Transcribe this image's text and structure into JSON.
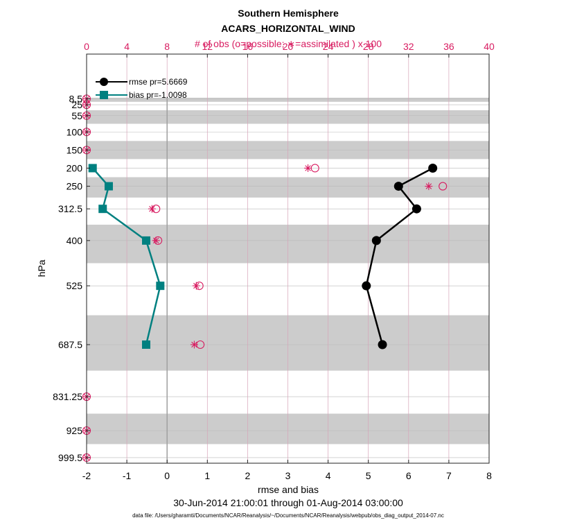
{
  "chart_data": {
    "type": "line",
    "title": "Southern Hemisphere",
    "subtitle": "ACARS_HORIZONTAL_WIND",
    "top_xlabel": "# of obs (o=possible; ∗=assimilated ) x 100",
    "xlabel": "rmse and bias",
    "ylabel": "hPa",
    "date_range": "30-Jun-2014 21:00:01 through 01-Aug-2014 03:00:00",
    "footnote": "data file: /Users/gharamti/Documents/NCAR/Reanalysis/~/Documents/NCAR/Reanalysis/webpub/obs_diag_output_2014-07.nc",
    "xlim": [
      -2,
      8
    ],
    "xticks": [
      "-2",
      "-1",
      "0",
      "1",
      "2",
      "3",
      "4",
      "5",
      "6",
      "7",
      "8"
    ],
    "top_xlim": [
      0,
      40
    ],
    "top_xticks": [
      "0",
      "4",
      "8",
      "12",
      "16",
      "20",
      "24",
      "28",
      "32",
      "36",
      "40"
    ],
    "levels": [
      8.5,
      25,
      55,
      100,
      150,
      200,
      250,
      312.5,
      400,
      525,
      687.5,
      831.25,
      925,
      999.5
    ],
    "level_labels": [
      "8.5",
      "25",
      "55",
      "100",
      "150",
      "200",
      "250",
      "312.5",
      "400",
      "525",
      "687.5",
      "831.25",
      "925",
      "999.5"
    ],
    "series": [
      {
        "name": "rmse pr=5.6669",
        "color": "#000000",
        "levels": [
          200,
          250,
          312.5,
          400,
          525,
          687.5
        ],
        "values": [
          6.6,
          5.75,
          6.2,
          5.2,
          4.95,
          5.35
        ]
      },
      {
        "name": "bias pr=-1.0098",
        "color": "#008080",
        "levels": [
          200,
          250,
          312.5,
          400,
          525,
          687.5
        ],
        "values": [
          -1.85,
          -1.45,
          -1.6,
          -0.52,
          -0.17,
          -0.52
        ]
      }
    ],
    "obs_counts": {
      "levels": [
        8.5,
        25,
        55,
        100,
        150,
        200,
        250,
        312.5,
        400,
        525,
        687.5,
        831.25,
        925,
        999.5
      ],
      "possible": [
        0,
        0,
        0,
        0,
        0,
        22.7,
        35.4,
        6.9,
        7.1,
        11.2,
        11.3,
        0,
        0,
        0
      ],
      "assimilated": [
        0,
        0,
        0,
        0,
        0,
        22.0,
        34.0,
        6.5,
        6.9,
        10.9,
        10.7,
        0,
        0,
        0
      ]
    },
    "accent_color": "#d81b60",
    "band_color": "#cccccc"
  }
}
